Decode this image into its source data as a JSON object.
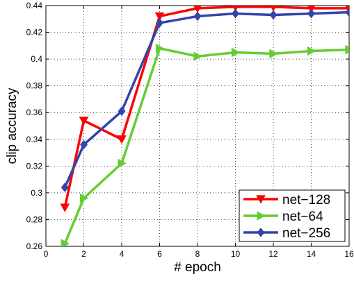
{
  "chart_data": {
    "type": "line",
    "title": "",
    "xlabel": "# epoch",
    "ylabel": "clip accuracy",
    "xlim": [
      0,
      16
    ],
    "ylim": [
      0.26,
      0.44
    ],
    "x_ticks": [
      0,
      2,
      4,
      6,
      8,
      10,
      12,
      14,
      16
    ],
    "y_ticks": [
      0.26,
      0.28,
      0.3,
      0.32,
      0.34,
      0.36,
      0.38,
      0.4,
      0.42,
      0.44
    ],
    "x_tick_labels": [
      "0",
      "2",
      "4",
      "6",
      "8",
      "10",
      "12",
      "14",
      "16"
    ],
    "y_tick_labels": [
      "0.26",
      "0.28",
      "0.3",
      "0.32",
      "0.34",
      "0.36",
      "0.38",
      "0.4",
      "0.42",
      "0.44"
    ],
    "grid": true,
    "legend_position": "bottom-right",
    "series": [
      {
        "name": "net−128",
        "color": "#ff0000",
        "marker": "triangle-down",
        "x": [
          1,
          2,
          4,
          6,
          8,
          10,
          12,
          14,
          16
        ],
        "y": [
          0.289,
          0.354,
          0.34,
          0.432,
          0.438,
          0.439,
          0.439,
          0.438,
          0.438
        ]
      },
      {
        "name": "net−64",
        "color": "#66cc33",
        "marker": "triangle-right",
        "x": [
          1,
          2,
          4,
          6,
          8,
          10,
          12,
          14,
          16
        ],
        "y": [
          0.262,
          0.296,
          0.322,
          0.408,
          0.402,
          0.405,
          0.404,
          0.406,
          0.407
        ]
      },
      {
        "name": "net−256",
        "color": "#3344aa",
        "marker": "diamond",
        "x": [
          1,
          2,
          4,
          6,
          8,
          10,
          12,
          14,
          16
        ],
        "y": [
          0.304,
          0.336,
          0.361,
          0.427,
          0.432,
          0.434,
          0.433,
          0.434,
          0.435
        ]
      }
    ]
  }
}
